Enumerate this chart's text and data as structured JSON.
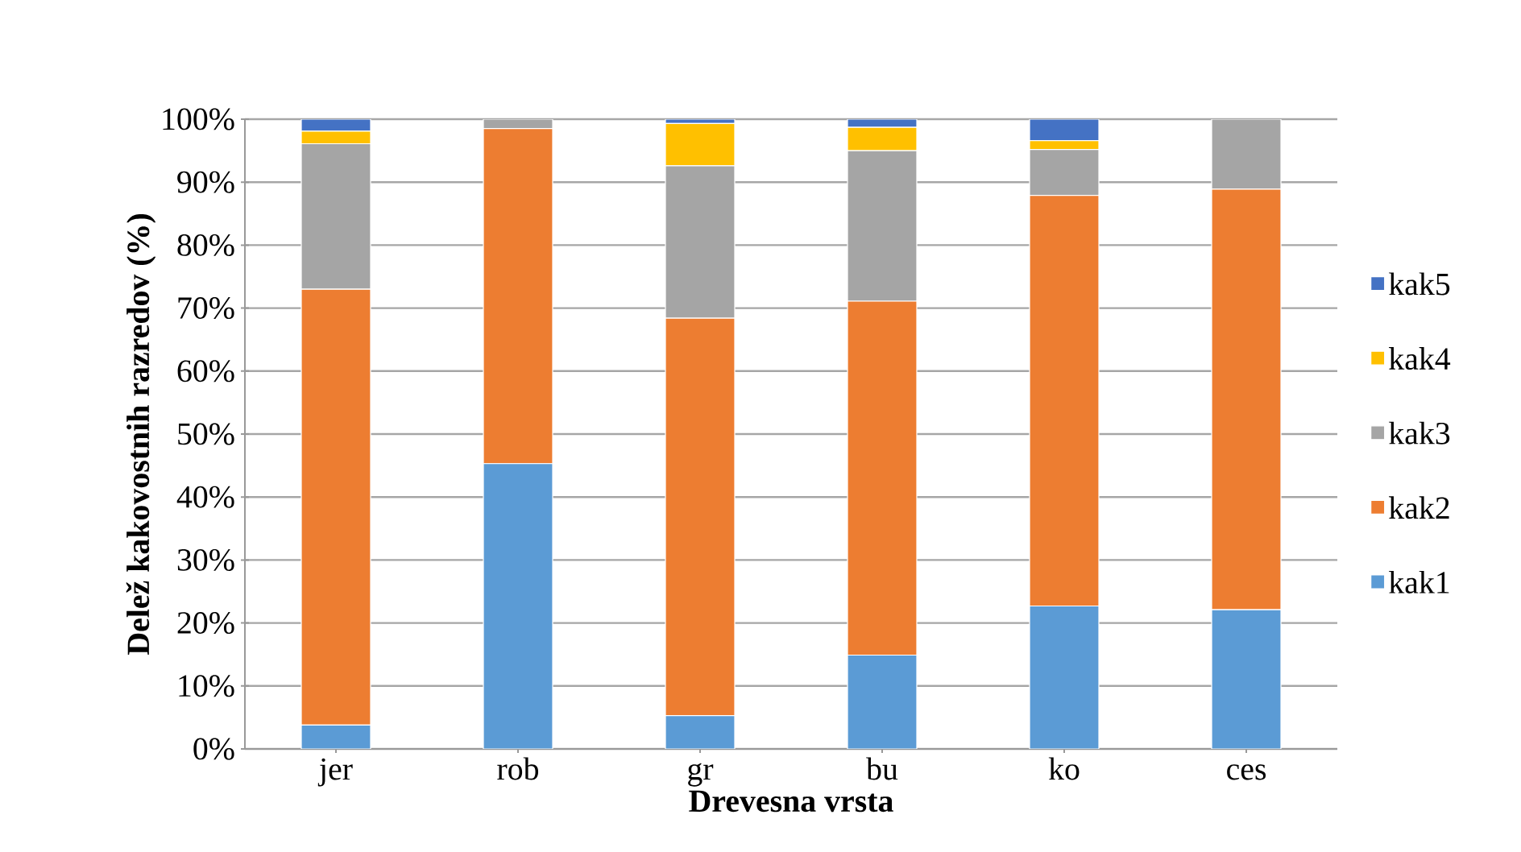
{
  "chart_data": {
    "type": "bar",
    "stacked": true,
    "xlabel": "Drevesna vrsta",
    "ylabel": "Delež kakovostnih razredov (%)",
    "categories": [
      "jer",
      "rob",
      "gr",
      "bu",
      "ko",
      "ces"
    ],
    "series": [
      {
        "name": "kak1",
        "color": "#5b9bd5",
        "values": [
          3.8,
          45.3,
          5.3,
          14.9,
          22.7,
          22.1
        ]
      },
      {
        "name": "kak2",
        "color": "#ed7d31",
        "values": [
          69.2,
          53.2,
          63.1,
          56.2,
          65.2,
          66.8
        ]
      },
      {
        "name": "kak3",
        "color": "#a5a5a5",
        "values": [
          23.1,
          1.5,
          24.2,
          23.9,
          7.3,
          11.1
        ]
      },
      {
        "name": "kak4",
        "color": "#ffc000",
        "values": [
          2.0,
          0,
          6.7,
          3.7,
          1.4,
          0
        ]
      },
      {
        "name": "kak5",
        "color": "#4472c4",
        "values": [
          1.9,
          0,
          0.7,
          1.3,
          3.4,
          0
        ]
      }
    ],
    "ylim": [
      0,
      100
    ],
    "yticks": [
      {
        "value": 0,
        "label": "0%"
      },
      {
        "value": 10,
        "label": "10%"
      },
      {
        "value": 20,
        "label": "20%"
      },
      {
        "value": 30,
        "label": "30%"
      },
      {
        "value": 40,
        "label": "40%"
      },
      {
        "value": 50,
        "label": "50%"
      },
      {
        "value": 60,
        "label": "60%"
      },
      {
        "value": 70,
        "label": "70%"
      },
      {
        "value": 80,
        "label": "80%"
      },
      {
        "value": 90,
        "label": "90%"
      },
      {
        "value": 100,
        "label": "100%"
      }
    ],
    "grid": "y",
    "legend": "right"
  }
}
